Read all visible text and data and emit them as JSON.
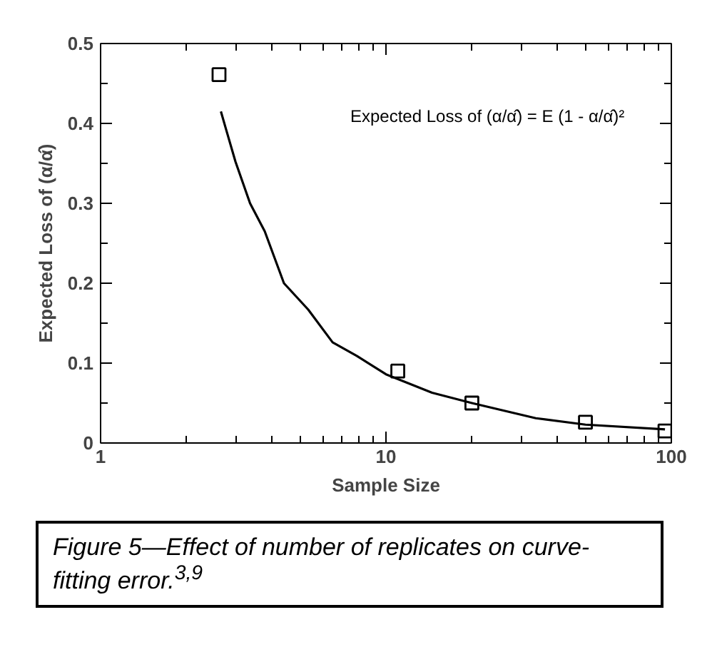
{
  "chart_data": {
    "type": "scatter",
    "xlabel": "Sample Size",
    "ylabel": "Expected Loss of (α/α̂)",
    "log": "x",
    "grid": false,
    "xlim": [
      1,
      100
    ],
    "ylim": [
      0,
      0.5
    ],
    "xticks": [
      1,
      {
        "value": 2,
        "label": null
      },
      {
        "value": 3,
        "label": null
      },
      {
        "value": 4,
        "label": null
      },
      {
        "value": 5,
        "label": null
      },
      {
        "value": 6,
        "label": null
      },
      {
        "value": 7,
        "label": null
      },
      {
        "value": 8,
        "label": null
      },
      {
        "value": 9,
        "label": null
      },
      10,
      {
        "value": 20,
        "label": null
      },
      {
        "value": 30,
        "label": null
      },
      {
        "value": 40,
        "label": null
      },
      {
        "value": 50,
        "label": null
      },
      {
        "value": 60,
        "label": null
      },
      {
        "value": 70,
        "label": null
      },
      {
        "value": 80,
        "label": null
      },
      {
        "value": 90,
        "label": null
      },
      100
    ],
    "yticks": [
      0,
      {
        "value": 0.05,
        "label": null
      },
      0.1,
      {
        "value": 0.15,
        "label": null
      },
      0.2,
      {
        "value": 0.25,
        "label": null
      },
      0.3,
      {
        "value": 0.35,
        "label": null
      },
      0.4,
      {
        "value": 0.45,
        "label": null
      },
      0.5
    ],
    "series": [
      {
        "marker": "square",
        "color": "#000000",
        "x": [
          2.6,
          11,
          20,
          50,
          95
        ],
        "values": [
          0.461,
          0.09,
          0.05,
          0.026,
          0.015
        ]
      },
      {
        "type": "line",
        "marker": "none",
        "line_style": "solid",
        "color": "#000000",
        "x": [
          2.64,
          2.75,
          2.97,
          3.34,
          3.76,
          4.39,
          5.34,
          6.5,
          7.9,
          10,
          14.5,
          20,
          33.5,
          50,
          95
        ],
        "values": [
          0.415,
          0.393,
          0.352,
          0.3,
          0.265,
          0.2,
          0.167,
          0.126,
          0.109,
          0.086,
          0.063,
          0.05,
          0.031,
          0.023,
          0.017
        ]
      }
    ],
    "annotations": [
      "Expected Loss of (α/α̂) = E (1 - α/α̂)²",
      "Figure 5—Effect of number of replicates on curve-fitting error.$^{3,9}$"
    ]
  }
}
